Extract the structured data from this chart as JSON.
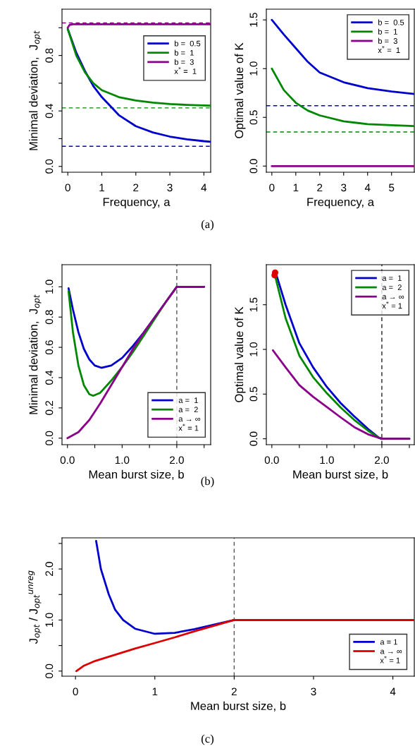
{
  "chart_data": [
    {
      "type": "line",
      "xlabel": "Frequency, a",
      "ylabel": "Minimal deviation,  J$_{opt}$",
      "xlim": [
        -0.17,
        4.2
      ],
      "ylim": [
        -0.042,
        1.134
      ],
      "xticks": [
        0,
        1,
        2,
        3,
        4
      ],
      "yticks": [
        {
          "value": 0,
          "label": "0.0"
        },
        {
          "value": 0.2,
          "label": null
        },
        {
          "value": 0.4,
          "label": "0.4"
        },
        {
          "value": 0.6,
          "label": null
        },
        {
          "value": 0.8,
          "label": "0.8"
        },
        {
          "value": 1.0,
          "label": null
        }
      ],
      "grid": false,
      "legend": "right",
      "line_style": "solid",
      "marker": "none",
      "series": [
        {
          "name": "b =  0.5",
          "color": "#0000cc",
          "x": [
            0,
            0.25,
            0.5,
            0.75,
            1,
            1.5,
            2,
            2.5,
            3,
            3.5,
            4,
            4.2
          ],
          "values": [
            0.99,
            0.82,
            0.69,
            0.58,
            0.5,
            0.37,
            0.29,
            0.245,
            0.215,
            0.195,
            0.182,
            0.178
          ]
        },
        {
          "name": "b =  1",
          "color": "#008800",
          "x": [
            0,
            0.25,
            0.5,
            0.75,
            1,
            1.5,
            2,
            2.5,
            3,
            3.5,
            4,
            4.2
          ],
          "values": [
            0.99,
            0.8,
            0.68,
            0.6,
            0.55,
            0.5,
            0.475,
            0.46,
            0.45,
            0.444,
            0.44,
            0.438
          ]
        },
        {
          "name": "b =  3",
          "color": "#8b008b",
          "x": [
            0,
            0.05,
            0.15,
            4.2
          ],
          "values": [
            1.0,
            1.02,
            1.025,
            1.025
          ]
        }
      ],
      "ref_lines": [
        {
          "axis": "y",
          "value": 0.145,
          "color": "#0000cc",
          "line_style": "dashed"
        },
        {
          "axis": "y",
          "value": 0.422,
          "color": "#008800",
          "line_style": "dashed"
        },
        {
          "axis": "y",
          "value": 1.035,
          "color": "#8b008b",
          "line_style": "dashed"
        }
      ],
      "annotations": [
        "x$^{*}$ =  1",
        "(a)"
      ]
    },
    {
      "type": "line",
      "xlabel": "Frequency, a",
      "ylabel": "Optimal value of K",
      "xlim": [
        -0.23,
        5.95
      ],
      "ylim": [
        -0.063,
        1.61
      ],
      "xticks": [
        0,
        1,
        2,
        3,
        4,
        5
      ],
      "yticks": [
        {
          "value": 0,
          "label": "0.0"
        },
        {
          "value": 0.5,
          "label": "0.5"
        },
        {
          "value": 1.0,
          "label": "1.0"
        },
        {
          "value": 1.5,
          "label": "1.5"
        }
      ],
      "grid": false,
      "legend": "top right",
      "line_style": "solid",
      "marker": "none",
      "series": [
        {
          "name": "b =  0.5",
          "color": "#0000cc",
          "x": [
            0,
            0.5,
            1,
            1.5,
            2,
            3,
            4,
            5,
            5.95
          ],
          "values": [
            1.5,
            1.35,
            1.21,
            1.07,
            0.96,
            0.86,
            0.8,
            0.765,
            0.74
          ]
        },
        {
          "name": "b =  1",
          "color": "#008800",
          "x": [
            0,
            0.5,
            1,
            1.5,
            2,
            3,
            4,
            5,
            5.95
          ],
          "values": [
            1.0,
            0.78,
            0.65,
            0.57,
            0.52,
            0.46,
            0.43,
            0.42,
            0.41
          ]
        },
        {
          "name": "b =  3",
          "color": "#8b008b",
          "x": [
            0,
            5.95
          ],
          "values": [
            0,
            0
          ]
        }
      ],
      "ref_lines": [
        {
          "axis": "y",
          "value": 0.62,
          "color": "#0000cc",
          "line_style": "dashed"
        },
        {
          "axis": "y",
          "value": 0.35,
          "color": "#008800",
          "line_style": "dashed"
        }
      ],
      "annotations": [
        "x$^{*}$ =  1"
      ]
    },
    {
      "type": "line",
      "xlabel": "Mean burst size, b",
      "ylabel": "Minimal deviation,  J$_{opt}$",
      "xlim": [
        -0.1,
        2.62
      ],
      "ylim": [
        -0.043,
        1.146
      ],
      "xticks": [
        {
          "value": 0,
          "label": "0.0"
        },
        {
          "value": 0.5,
          "label": null
        },
        {
          "value": 1.0,
          "label": "1.0"
        },
        {
          "value": 1.5,
          "label": null
        },
        {
          "value": 2.0,
          "label": "2.0"
        },
        {
          "value": 2.5,
          "label": null
        }
      ],
      "yticks": [
        {
          "value": 0,
          "label": "0.0"
        },
        {
          "value": 0.2,
          "label": "0.2"
        },
        {
          "value": 0.4,
          "label": "0.4"
        },
        {
          "value": 0.6,
          "label": "0.6"
        },
        {
          "value": 0.8,
          "label": "0.8"
        },
        {
          "value": 1.0,
          "label": "1.0"
        }
      ],
      "grid": false,
      "legend": "bottom right",
      "line_style": "solid",
      "marker": "none",
      "series": [
        {
          "name": "a =  1",
          "color": "#0000cc",
          "x": [
            0.02,
            0.1,
            0.2,
            0.3,
            0.4,
            0.5,
            0.62,
            0.8,
            1.0,
            1.2,
            1.4,
            1.6,
            1.8,
            2.0,
            2.5
          ],
          "values": [
            0.99,
            0.85,
            0.7,
            0.59,
            0.52,
            0.48,
            0.465,
            0.48,
            0.53,
            0.61,
            0.7,
            0.8,
            0.9,
            1.0,
            1.0
          ]
        },
        {
          "name": "a =  2",
          "color": "#008800",
          "x": [
            0.02,
            0.1,
            0.2,
            0.3,
            0.4,
            0.47,
            0.6,
            0.8,
            1.0,
            1.2,
            1.4,
            1.6,
            1.8,
            2.0,
            2.5
          ],
          "values": [
            0.97,
            0.7,
            0.48,
            0.35,
            0.29,
            0.28,
            0.3,
            0.38,
            0.47,
            0.57,
            0.68,
            0.79,
            0.9,
            1.0,
            1.0
          ]
        },
        {
          "name": "a → ∞",
          "color": "#8b008b",
          "x": [
            0,
            0.2,
            0.4,
            0.6,
            0.8,
            1.0,
            1.2,
            1.4,
            1.6,
            1.8,
            2.0,
            2.5
          ],
          "values": [
            0,
            0.04,
            0.12,
            0.23,
            0.35,
            0.47,
            0.59,
            0.7,
            0.8,
            0.9,
            1.0,
            1.0
          ]
        }
      ],
      "ref_lines": [
        {
          "axis": "x",
          "value": 2.0,
          "color": "#555555",
          "line_style": "dashed"
        }
      ],
      "annotations": [
        "x$^{*}$ = 1",
        "(b)"
      ]
    },
    {
      "type": "line",
      "xlabel": "Mean burst size, b",
      "ylabel": "Optimal value of K",
      "xlim": [
        -0.1,
        2.59
      ],
      "ylim": [
        -0.066,
        1.948
      ],
      "xticks": [
        {
          "value": 0,
          "label": "0.0"
        },
        {
          "value": 0.5,
          "label": null
        },
        {
          "value": 1.0,
          "label": "1.0"
        },
        {
          "value": 1.5,
          "label": null
        },
        {
          "value": 2.0,
          "label": "2.0"
        },
        {
          "value": 2.5,
          "label": null
        }
      ],
      "yticks": [
        {
          "value": 0,
          "label": "0.0"
        },
        {
          "value": 0.5,
          "label": "0.5"
        },
        {
          "value": 1.0,
          "label": "1.0"
        },
        {
          "value": 1.5,
          "label": "1.5"
        }
      ],
      "grid": false,
      "legend": "top right",
      "line_style": "solid",
      "marker": "none",
      "series": [
        {
          "name": "a =  1",
          "color": "#0000cc",
          "x": [
            0.08,
            0.25,
            0.5,
            0.75,
            1,
            1.25,
            1.5,
            1.75,
            1.95,
            2.0,
            2.5
          ],
          "values": [
            1.84,
            1.5,
            1.07,
            0.8,
            0.58,
            0.4,
            0.25,
            0.11,
            0.01,
            0,
            0
          ]
        },
        {
          "name": "a =  2",
          "color": "#008800",
          "x": [
            0.06,
            0.25,
            0.5,
            0.75,
            1,
            1.25,
            1.5,
            1.75,
            1.95,
            2.0,
            2.5
          ],
          "values": [
            1.82,
            1.35,
            0.93,
            0.69,
            0.51,
            0.35,
            0.21,
            0.09,
            0.01,
            0,
            0
          ]
        },
        {
          "name": "a → ∞",
          "color": "#8b008b",
          "x": [
            0.02,
            0.25,
            0.5,
            0.75,
            1,
            1.25,
            1.5,
            1.75,
            2.0,
            2.5
          ],
          "values": [
            0.99,
            0.8,
            0.6,
            0.47,
            0.355,
            0.24,
            0.13,
            0.05,
            0,
            0
          ]
        },
        {
          "type": "scatter",
          "color": "#dd0000",
          "x": [
            0.05,
            0.06
          ],
          "values": [
            1.83,
            1.86
          ]
        }
      ],
      "ref_lines": [
        {
          "axis": "x",
          "value": 2.0,
          "color": "#222222",
          "line_style": "dashed"
        }
      ],
      "annotations": [
        "x$^{*}$ = 1"
      ]
    },
    {
      "type": "line",
      "xlabel": "Mean burst size, b",
      "ylabel": "J$_{opt}$ / J$_{opt}$$^{unreg}$",
      "xlim": [
        -0.17,
        4.27
      ],
      "ylim": [
        -0.1,
        2.61
      ],
      "xticks": [
        0,
        1,
        2,
        3,
        4
      ],
      "yticks": [
        {
          "value": 0,
          "label": "0.0"
        },
        {
          "value": 0.5,
          "label": null
        },
        {
          "value": 1.0,
          "label": "1.0"
        },
        {
          "value": 1.5,
          "label": null
        },
        {
          "value": 2.0,
          "label": "2.0"
        },
        {
          "value": 2.5,
          "label": null
        }
      ],
      "grid": false,
      "legend": "bottom right",
      "line_style": "solid",
      "marker": "none",
      "series": [
        {
          "name": "a = 1",
          "color": "#0000cc",
          "x": [
            0.26,
            0.32,
            0.42,
            0.5,
            0.6,
            0.75,
            1.0,
            1.25,
            1.5,
            1.75,
            2.0,
            4.27
          ],
          "values": [
            2.55,
            2.0,
            1.5,
            1.2,
            1.0,
            0.83,
            0.73,
            0.75,
            0.82,
            0.91,
            1.0,
            1.0
          ]
        },
        {
          "name": "a → ∞",
          "color": "#dd0000",
          "x": [
            0.01,
            0.1,
            0.25,
            0.5,
            0.75,
            1,
            1.25,
            1.5,
            1.75,
            2.0,
            4.27
          ],
          "values": [
            0,
            0.1,
            0.2,
            0.32,
            0.44,
            0.55,
            0.66,
            0.78,
            0.89,
            1.0,
            1.0
          ]
        }
      ],
      "ref_lines": [
        {
          "axis": "x",
          "value": 2.0,
          "color": "#555555",
          "line_style": "dashed"
        }
      ],
      "annotations": [
        "x$^{*}$ = 1",
        "(c)"
      ]
    }
  ]
}
